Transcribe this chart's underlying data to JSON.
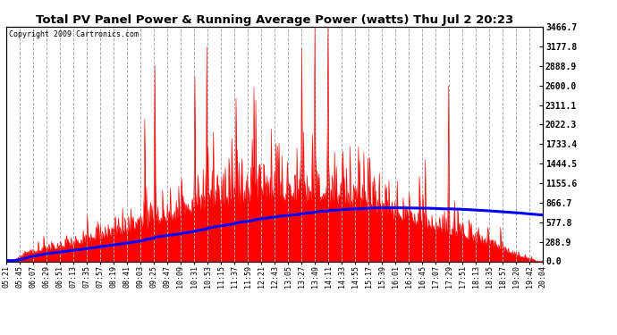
{
  "title": "Total PV Panel Power & Running Average Power (watts) Thu Jul 2 20:23",
  "copyright": "Copyright 2009 Cartronics.com",
  "background_color": "#ffffff",
  "plot_bg_color": "#ffffff",
  "yticks": [
    0.0,
    288.9,
    577.8,
    866.7,
    1155.6,
    1444.5,
    1733.4,
    2022.3,
    2311.1,
    2600.0,
    2888.9,
    3177.8,
    3466.7
  ],
  "ymax": 3466.7,
  "ymin": 0.0,
  "grid_color": "#aaaaaa",
  "pv_color": "#ff0000",
  "avg_color": "#0000ff",
  "time_labels": [
    "05:21",
    "05:45",
    "06:07",
    "06:29",
    "06:51",
    "07:13",
    "07:35",
    "07:57",
    "08:19",
    "08:41",
    "09:03",
    "09:25",
    "09:47",
    "10:09",
    "10:31",
    "10:53",
    "11:15",
    "11:37",
    "11:59",
    "12:21",
    "12:43",
    "13:05",
    "13:27",
    "13:49",
    "14:11",
    "14:33",
    "14:55",
    "15:17",
    "15:39",
    "16:01",
    "16:23",
    "16:45",
    "17:07",
    "17:29",
    "17:51",
    "18:13",
    "18:35",
    "18:57",
    "19:20",
    "19:42",
    "20:04"
  ],
  "figwidth": 6.9,
  "figheight": 3.75,
  "dpi": 100
}
